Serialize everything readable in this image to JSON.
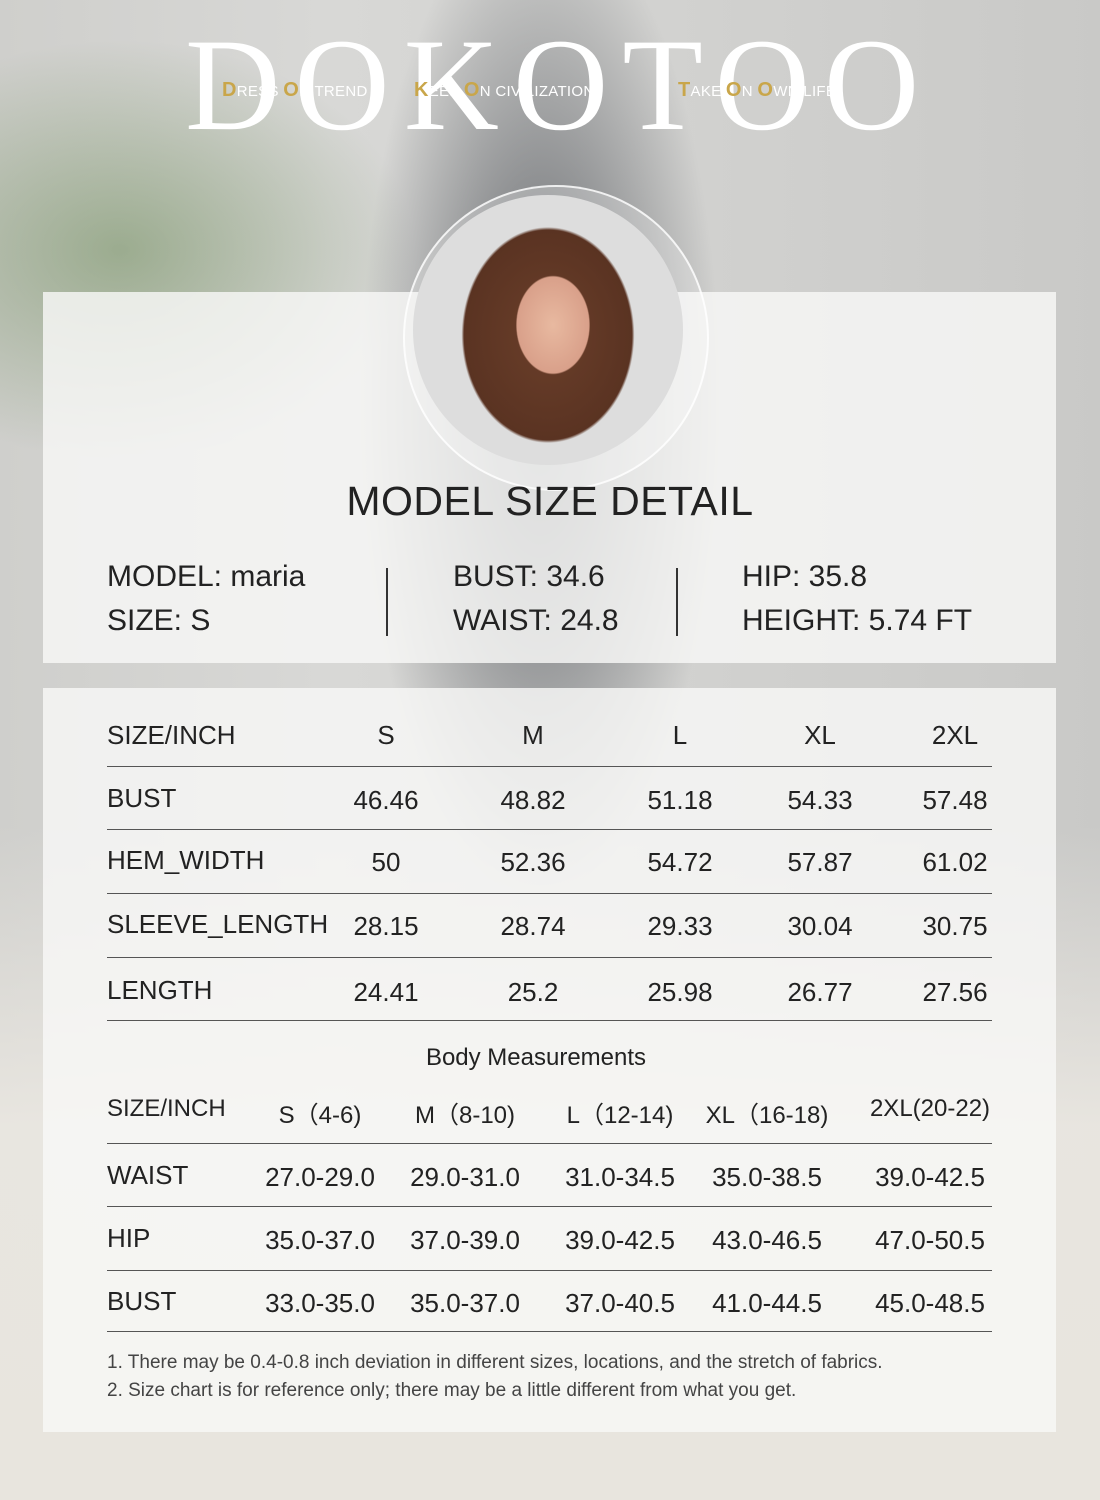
{
  "brand": {
    "logo": "DOKOTOO",
    "taglines": [
      {
        "initial": "D",
        "rest": "RESS ",
        "initial2": "O",
        "rest2": "N TREND"
      },
      {
        "initial": "K",
        "rest": "EEP ",
        "initial2": "O",
        "rest2": "N CIVILIZATION"
      },
      {
        "initial": "T",
        "rest": "AKE ",
        "initial2": "O",
        "rest2": "N ",
        "initial3": "O",
        "rest3": "WN LIFE"
      }
    ]
  },
  "model": {
    "title": "MODEL SIZE DETAIL",
    "name": "MODEL: maria",
    "size": "SIZE: S",
    "bust": "BUST: 34.6",
    "waist": "WAIST: 24.8",
    "hip": "HIP: 35.8",
    "height": "HEIGHT: 5.74 FT"
  },
  "garment_table": {
    "headers": [
      "SIZE/INCH",
      "S",
      "M",
      "L",
      "XL",
      "2XL"
    ],
    "rows": [
      {
        "label": "BUST",
        "values": [
          "46.46",
          "48.82",
          "51.18",
          "54.33",
          "57.48"
        ]
      },
      {
        "label": "HEM_WIDTH",
        "values": [
          "50",
          "52.36",
          "54.72",
          "57.87",
          "61.02"
        ]
      },
      {
        "label": "SLEEVE_LENGTH",
        "values": [
          "28.15",
          "28.74",
          "29.33",
          "30.04",
          "30.75"
        ]
      },
      {
        "label": "LENGTH",
        "values": [
          "24.41",
          "25.2",
          "25.98",
          "26.77",
          "27.56"
        ]
      }
    ]
  },
  "body_table": {
    "title": "Body Measurements",
    "headers": [
      "SIZE/INCH",
      "S（4-6)",
      "M（8-10)",
      "L（12-14)",
      "XL（16-18)",
      "2XL(20-22)"
    ],
    "rows": [
      {
        "label": "WAIST",
        "values": [
          "27.0-29.0",
          "29.0-31.0",
          "31.0-34.5",
          "35.0-38.5",
          "39.0-42.5"
        ]
      },
      {
        "label": "HIP",
        "values": [
          "35.0-37.0",
          "37.0-39.0",
          "39.0-42.5",
          "43.0-46.5",
          "47.0-50.5"
        ]
      },
      {
        "label": "BUST",
        "values": [
          "33.0-35.0",
          "35.0-37.0",
          "37.0-40.5",
          "41.0-44.5",
          "45.0-48.5"
        ]
      }
    ]
  },
  "notes": [
    "1. There may be 0.4-0.8 inch deviation in different sizes, locations, and the stretch of fabrics.",
    "2. Size chart is for reference only; there may be a little different from what you get."
  ]
}
